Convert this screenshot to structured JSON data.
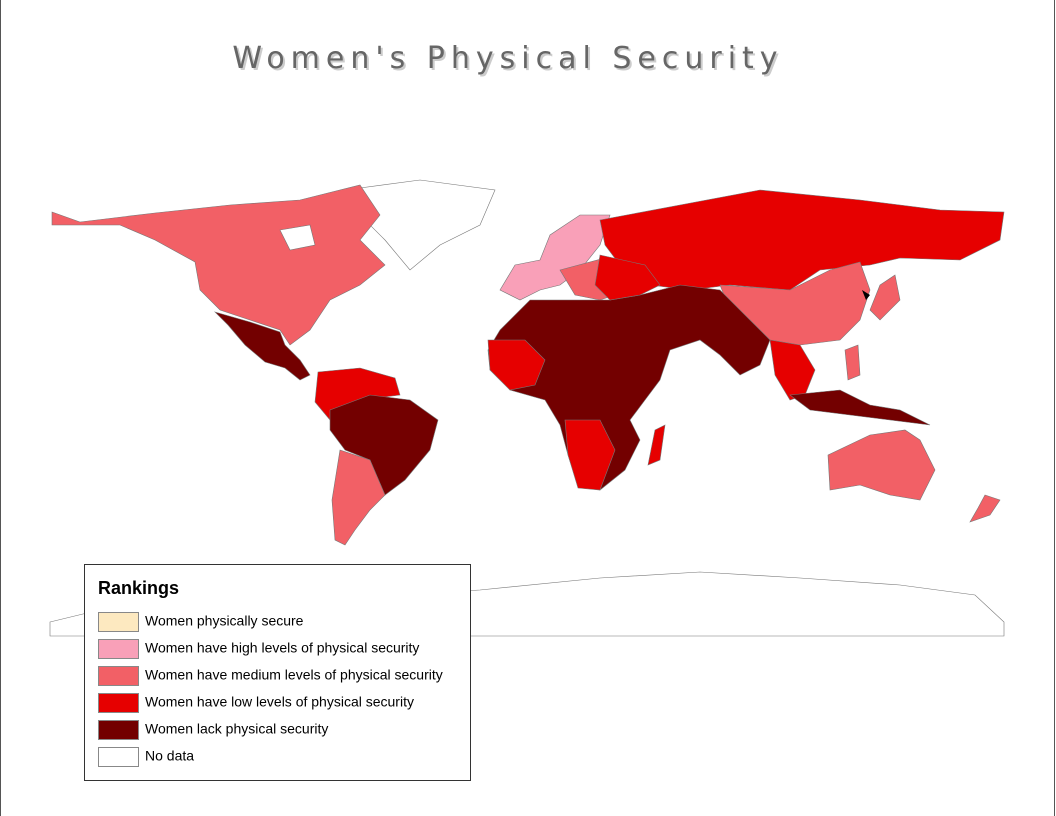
{
  "title": "Women's Physical Security",
  "legend": {
    "title": "Rankings",
    "items": [
      {
        "label": "Women physically secure",
        "color": "#fde9c0"
      },
      {
        "label": "Women have high levels of physical security",
        "color": "#f9a0b8"
      },
      {
        "label": "Women have medium levels of physical security",
        "color": "#f26066"
      },
      {
        "label": "Women have low levels of physical security",
        "color": "#e60000"
      },
      {
        "label": "Women lack physical security",
        "color": "#730000"
      },
      {
        "label": "No data",
        "color": "#ffffff"
      }
    ]
  }
}
